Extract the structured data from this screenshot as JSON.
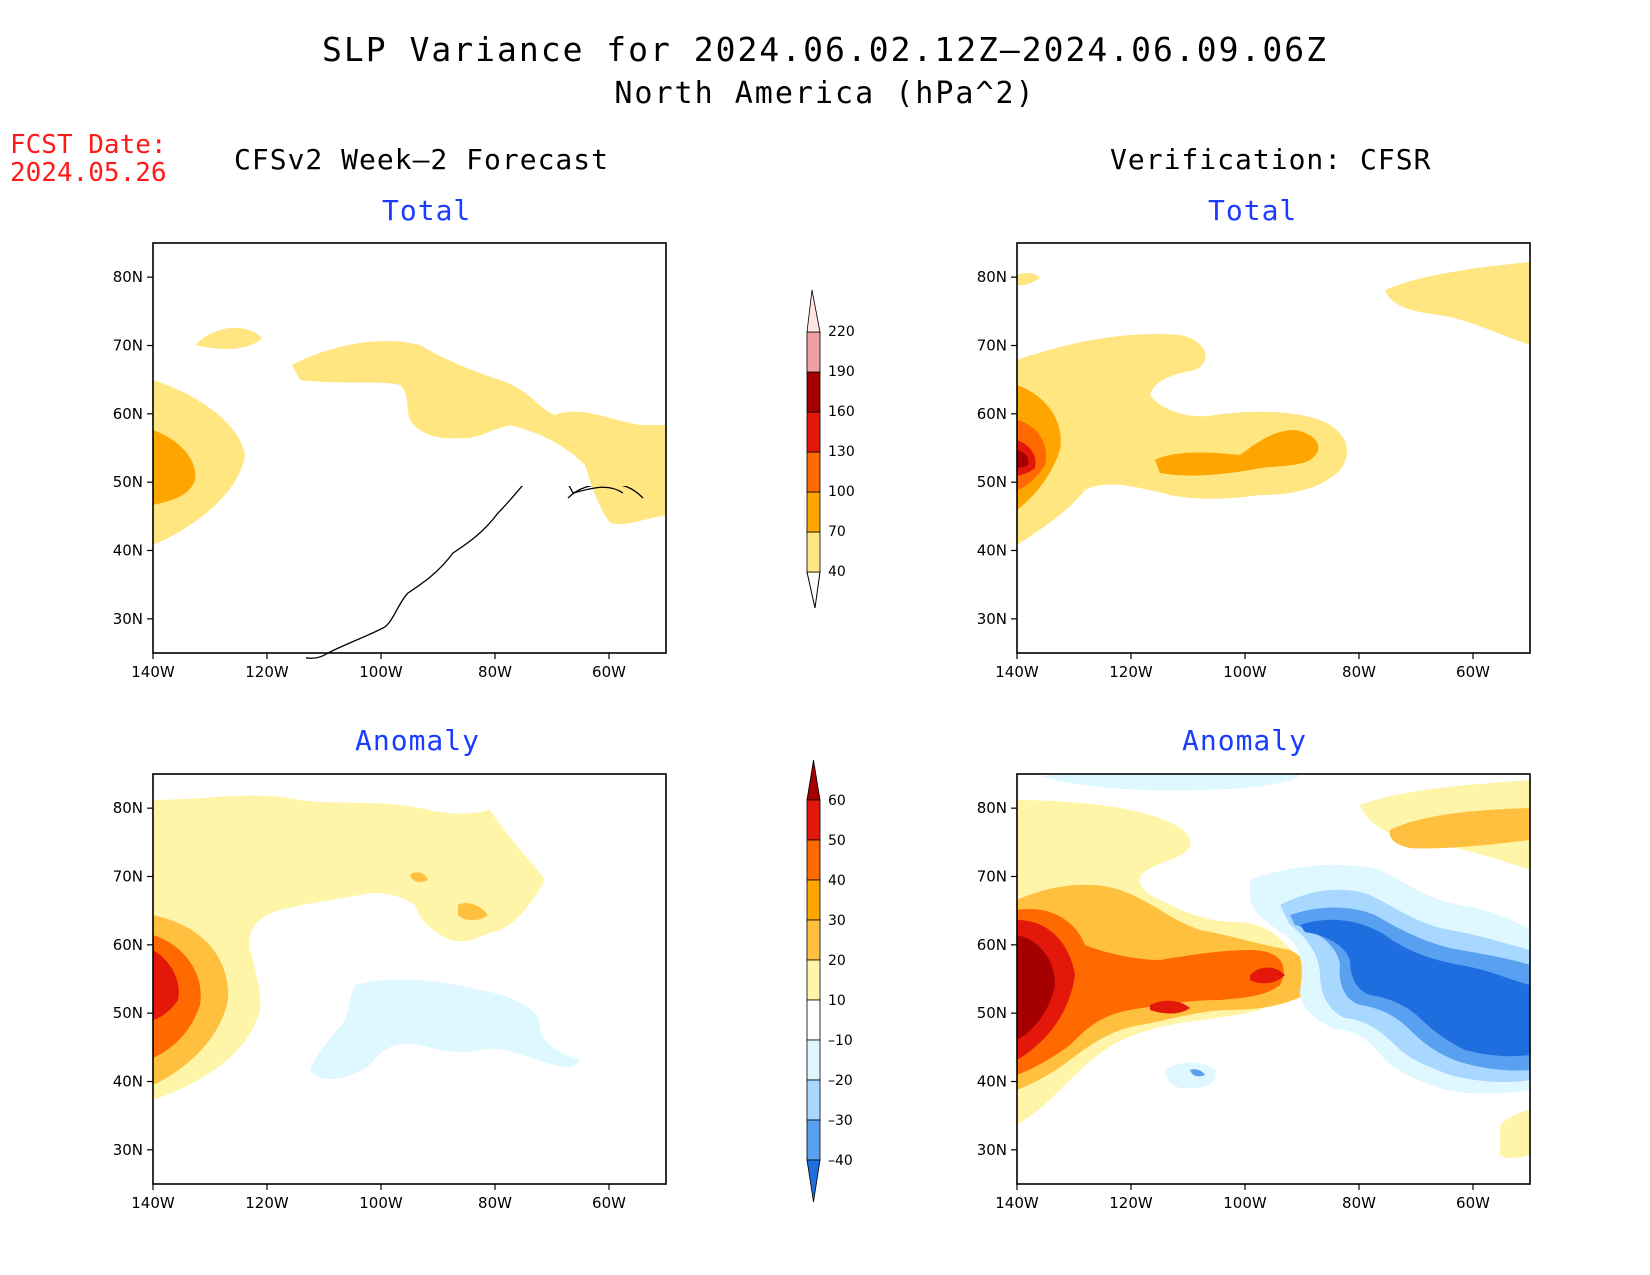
{
  "title": "SLP Variance for 2024.06.02.12Z–2024.06.09.06Z",
  "subtitle": "North America (hPa^2)",
  "forecast_date": {
    "label": "FCST Date:",
    "value": "2024.05.26"
  },
  "columns": {
    "left": "CFSv2 Week–2 Forecast",
    "right": "Verification: CFSR"
  },
  "panel_titles": {
    "total": "Total",
    "anomaly": "Anomaly"
  },
  "axes": {
    "lat_ticks": [
      "30N",
      "40N",
      "50N",
      "60N",
      "70N",
      "80N"
    ],
    "lon_ticks": [
      "140W",
      "120W",
      "100W",
      "80W",
      "60W"
    ]
  },
  "colorbar_total": {
    "levels": [
      "40",
      "70",
      "100",
      "130",
      "160",
      "190",
      "220"
    ],
    "colors": [
      "#ffe680",
      "#ffa500",
      "#ff6a00",
      "#e3170a",
      "#a50000",
      "#f0a0a0",
      "#ffe4e4"
    ]
  },
  "colorbar_anomaly": {
    "labels_top": [
      "60",
      "50",
      "40",
      "30",
      "20",
      "10"
    ],
    "labels_bottom": [
      "–10",
      "–20",
      "–30",
      "–40"
    ],
    "colors": {
      "pos_60_up": "#a50000",
      "pos_50_60": "#e3170a",
      "pos_40_50": "#ff6a00",
      "pos_30_40": "#ffa500",
      "pos_20_30": "#ffc040",
      "pos_10_20": "#fff5a8",
      "neutral": "#ffffff",
      "neg_10_20": "#dff8ff",
      "neg_20_30": "#a8d8ff",
      "neg_30_40": "#5aa0f0",
      "neg_40_down": "#1e6ee0"
    }
  }
}
